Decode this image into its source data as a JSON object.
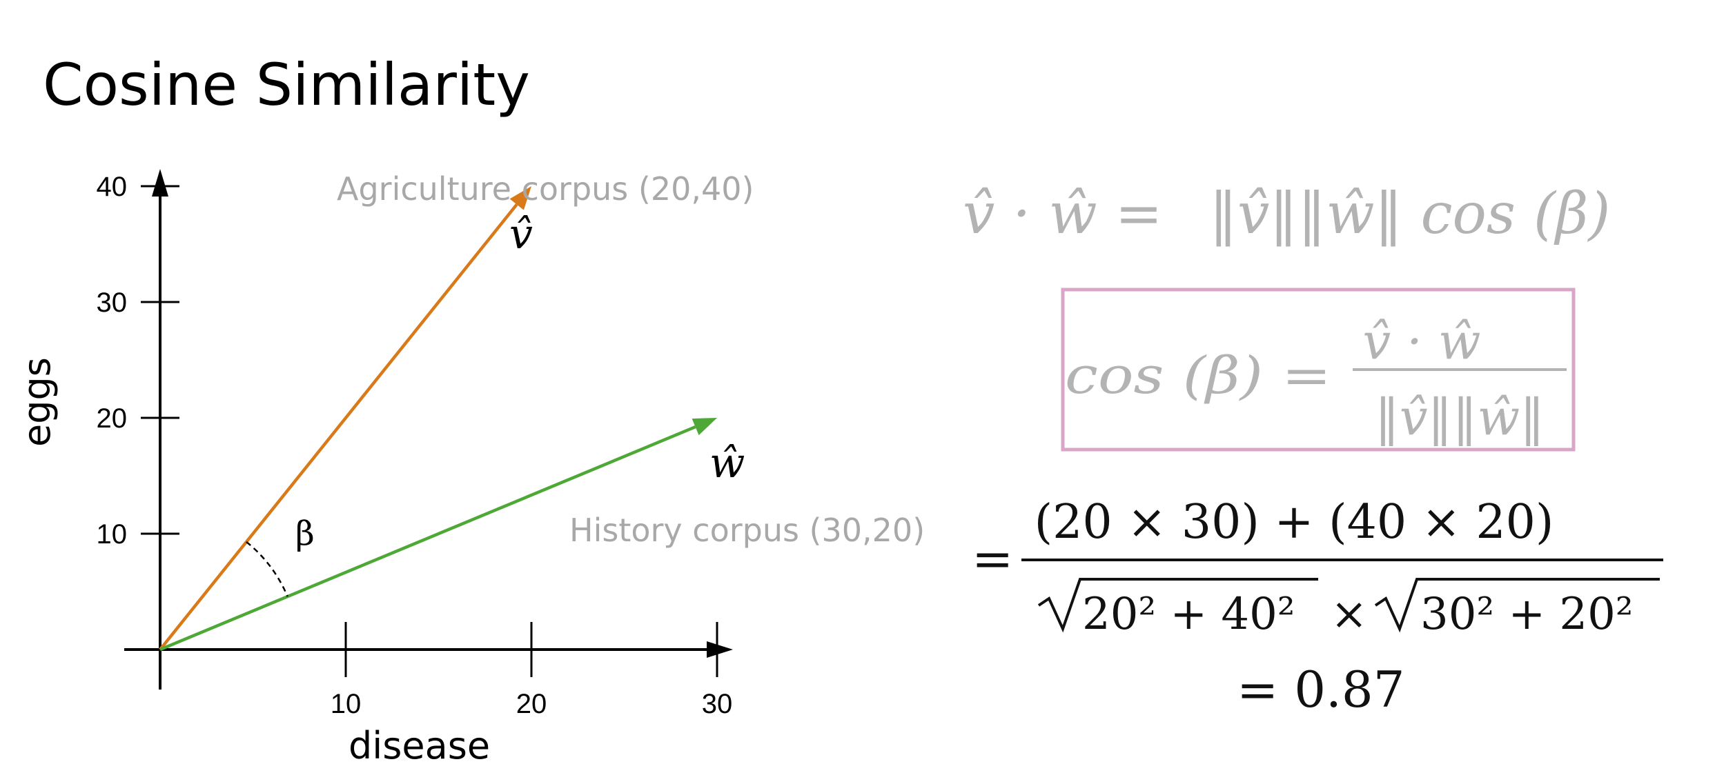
{
  "title": "Cosine Similarity",
  "axes": {
    "x_label": "disease",
    "y_label": "eggs",
    "x_ticks": [
      "10",
      "20",
      "30"
    ],
    "y_ticks": [
      "10",
      "20",
      "30",
      "40"
    ]
  },
  "vectors": [
    {
      "name": "v",
      "symbol": "v̂",
      "label": "Agriculture corpus (20,40)",
      "x": 20,
      "y": 40,
      "color": "#d97a1a"
    },
    {
      "name": "w",
      "symbol": "ŵ",
      "label": "History corpus (30,20)",
      "x": 30,
      "y": 20,
      "color": "#4ea836"
    }
  ],
  "angle_label": "β",
  "equations": {
    "dot": {
      "lhs": "v̂ · ŵ =",
      "rhs": "‖v̂‖‖ŵ‖ cos (β)"
    },
    "boxed": {
      "lhs": "cos (β) =",
      "num": "v̂ · ŵ",
      "den": "‖v̂‖‖ŵ‖",
      "box_color": "#d9a6c8"
    },
    "calc": {
      "eq": "=",
      "num": "(20 × 30) + (40 × 20)",
      "den_left": "20² + 40²",
      "times": "×",
      "den_right": "30² + 20²"
    },
    "result": "= 0.87"
  }
}
